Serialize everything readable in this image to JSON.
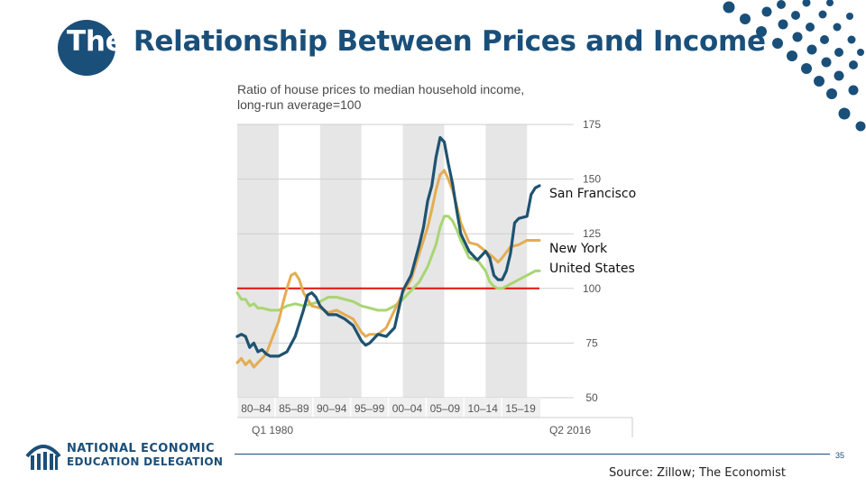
{
  "slide": {
    "title_first": "The",
    "title_rest": " Relationship Between Prices and Income",
    "source": "Source: Zillow; The Economist",
    "page_number": "35",
    "logo_line1": "NATIONAL ECONOMIC",
    "logo_line2": "EDUCATION DELEGATION"
  },
  "colors": {
    "brand": "#1a4f7a",
    "san_francisco": "#1e5371",
    "new_york": "#e3ad52",
    "united_states": "#a8d672",
    "reference_line": "#e3120b",
    "period_shade": "#e6e6e6"
  },
  "chart_data": {
    "type": "line",
    "title": "Ratio of house prices to median household income,",
    "subtitle": "long-run average=100",
    "y_ticks": [
      50,
      75,
      100,
      125,
      150,
      175
    ],
    "ylim": [
      50,
      175
    ],
    "xlim": [
      1980.0,
      2016.5
    ],
    "period_labels": [
      "80–84",
      "85–89",
      "90–94",
      "95–99",
      "00–04",
      "05–09",
      "10–14",
      "15–19"
    ],
    "shaded_periods": [
      [
        1980,
        1985
      ],
      [
        1990,
        1995
      ],
      [
        2000,
        2005
      ],
      [
        2010,
        2015
      ]
    ],
    "x_start_label": "Q1 1980",
    "x_end_label": "Q2 2016",
    "reference_value": 100,
    "grid": true,
    "series": [
      {
        "name": "San Francisco",
        "x": [
          1980,
          1980.5,
          1981,
          1981.5,
          1982,
          1982.5,
          1983,
          1983.5,
          1984,
          1985,
          1986,
          1987,
          1988,
          1988.5,
          1989,
          1989.5,
          1990,
          1991,
          1992,
          1993,
          1994,
          1995,
          1995.5,
          1996,
          1997,
          1998,
          1999,
          2000,
          2001,
          2002,
          2002.5,
          2003,
          2003.5,
          2004,
          2004.5,
          2005,
          2005.5,
          2006,
          2006.5,
          2007,
          2008,
          2009,
          2010,
          2010.5,
          2011,
          2011.5,
          2012,
          2012.5,
          2013,
          2013.5,
          2014,
          2015,
          2015.5,
          2016,
          2016.5
        ],
        "values": [
          78,
          79,
          78,
          73,
          75,
          71,
          72,
          70,
          69,
          69,
          71,
          78,
          90,
          97,
          98,
          96,
          92,
          88,
          88,
          86,
          83,
          76,
          74,
          75,
          79,
          78,
          82,
          99,
          106,
          120,
          128,
          140,
          147,
          160,
          169,
          167,
          157,
          148,
          136,
          125,
          117,
          113,
          117,
          114,
          106,
          104,
          104,
          108,
          116,
          130,
          132,
          133,
          143,
          146,
          147
        ]
      },
      {
        "name": "New York",
        "x": [
          1980,
          1980.5,
          1981,
          1981.5,
          1982,
          1982.5,
          1983,
          1983.5,
          1984,
          1985,
          1985.5,
          1986,
          1986.5,
          1987,
          1987.5,
          1988,
          1988.5,
          1989,
          1990,
          1991,
          1992,
          1993,
          1994,
          1995,
          1995.5,
          1996,
          1997,
          1998,
          1999,
          2000,
          2001,
          2002,
          2003,
          2003.5,
          2004,
          2004.5,
          2005,
          2005.5,
          2006,
          2006.5,
          2007,
          2008,
          2009,
          2010,
          2011,
          2011.5,
          2012,
          2013,
          2014,
          2015,
          2016,
          2016.5
        ],
        "values": [
          66,
          68,
          65,
          67,
          64,
          66,
          68,
          70,
          75,
          85,
          93,
          100,
          106,
          107,
          104,
          98,
          95,
          92,
          91,
          89,
          90,
          88,
          86,
          80,
          78,
          79,
          79,
          82,
          90,
          98,
          104,
          116,
          128,
          136,
          145,
          152,
          154,
          150,
          145,
          138,
          130,
          121,
          120,
          117,
          114,
          112,
          114,
          119,
          120,
          122,
          122,
          122
        ]
      },
      {
        "name": "United States",
        "x": [
          1980,
          1980.5,
          1981,
          1981.5,
          1982,
          1982.5,
          1983,
          1984,
          1985,
          1986,
          1987,
          1988,
          1989,
          1990,
          1991,
          1992,
          1993,
          1994,
          1995,
          1996,
          1997,
          1998,
          1999,
          2000,
          2001,
          2002,
          2003,
          2004,
          2004.5,
          2005,
          2005.5,
          2006,
          2006.5,
          2007,
          2008,
          2009,
          2010,
          2010.5,
          2011,
          2011.5,
          2012,
          2013,
          2014,
          2014.5,
          2015,
          2016,
          2016.5
        ],
        "values": [
          98,
          95,
          95,
          92,
          93,
          91,
          91,
          90,
          90,
          92,
          93,
          92,
          93,
          94,
          96,
          96,
          95,
          94,
          92,
          91,
          90,
          90,
          92,
          95,
          99,
          103,
          110,
          120,
          128,
          133,
          133,
          131,
          127,
          122,
          114,
          113,
          108,
          103,
          101,
          100,
          100,
          102,
          104,
          105,
          106,
          108,
          108
        ]
      }
    ]
  }
}
